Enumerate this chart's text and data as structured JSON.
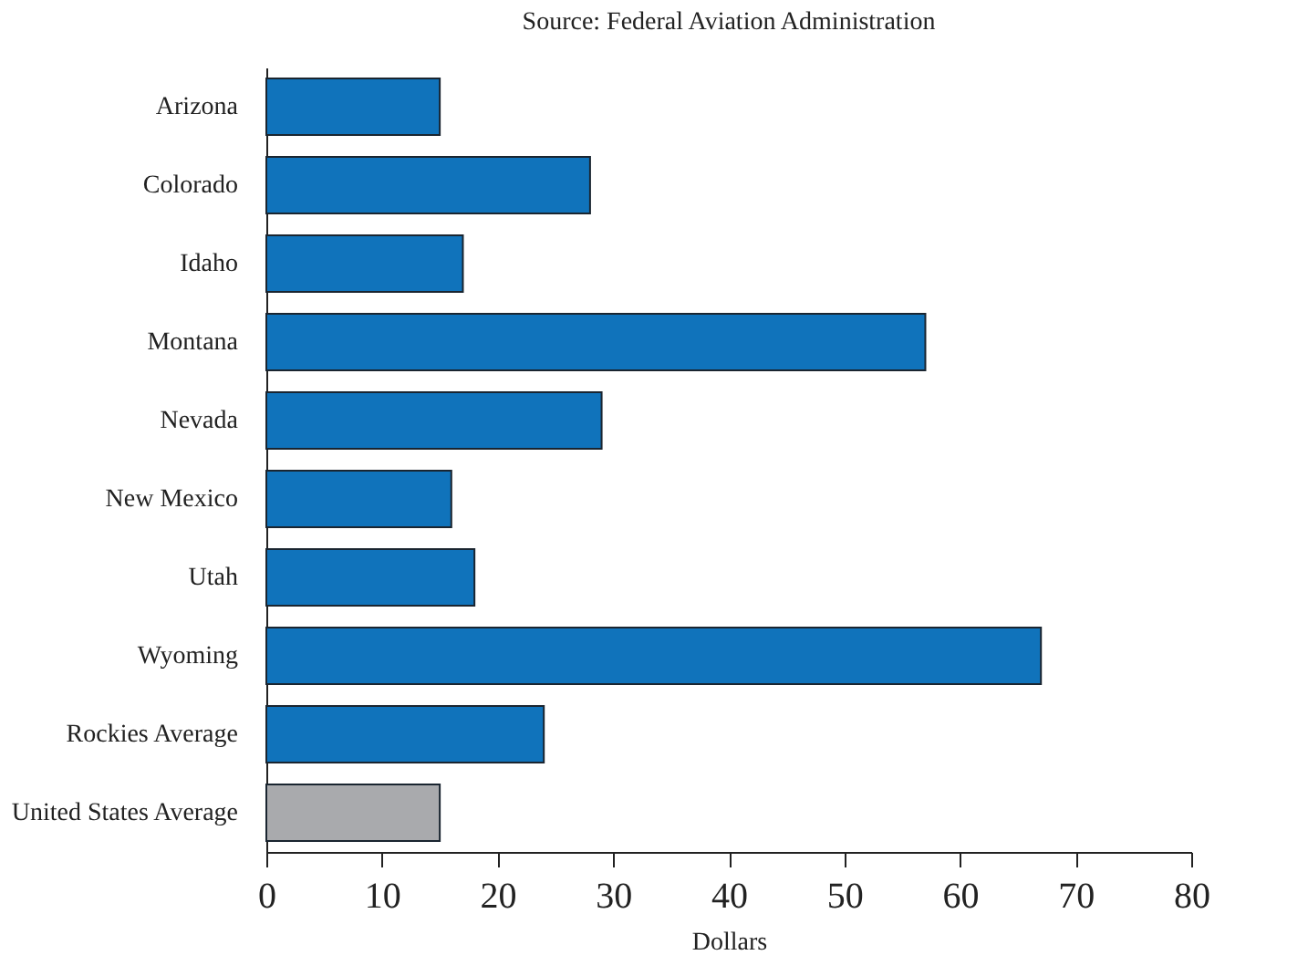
{
  "chart_data": {
    "type": "bar",
    "orientation": "horizontal",
    "subtitle": "Source: Federal Aviation Administration",
    "xlabel": "Dollars",
    "categories": [
      "Arizona",
      "Colorado",
      "Idaho",
      "Montana",
      "Nevada",
      "New Mexico",
      "Utah",
      "Wyoming",
      "Rockies Average",
      "United States Average"
    ],
    "values": [
      15,
      28,
      17,
      57,
      29,
      16,
      18,
      67,
      24,
      15
    ],
    "colors": [
      "#1073bb",
      "#1073bb",
      "#1073bb",
      "#1073bb",
      "#1073bb",
      "#1073bb",
      "#1073bb",
      "#1073bb",
      "#1073bb",
      "#a9aaad"
    ],
    "xlim": [
      0,
      80
    ],
    "xticks": [
      0,
      10,
      20,
      30,
      40,
      50,
      60,
      70,
      80
    ],
    "grid": false
  }
}
